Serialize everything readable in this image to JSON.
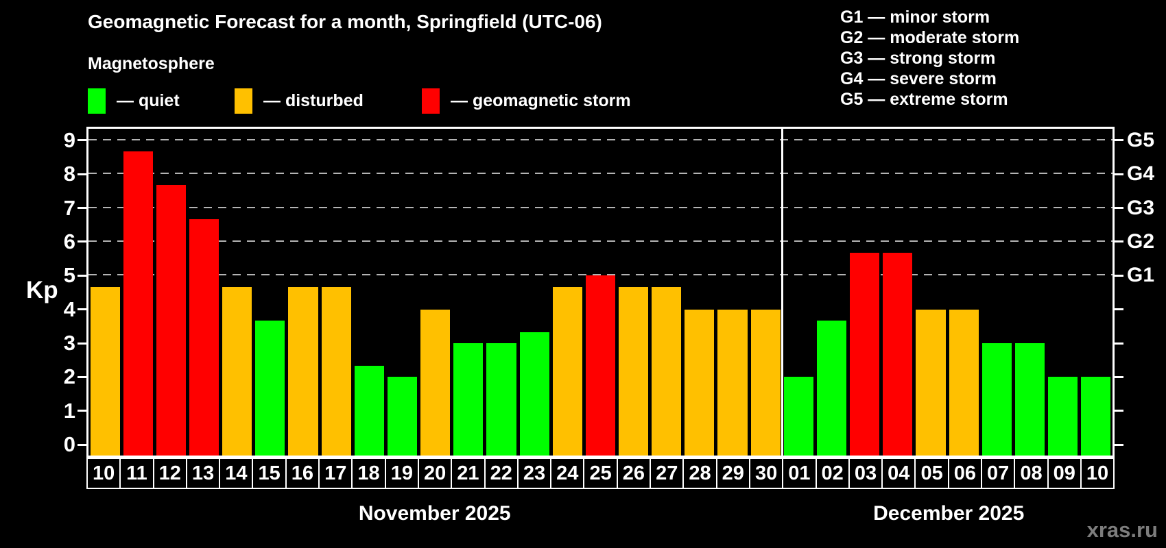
{
  "title": "Geomagnetic Forecast for a month, Springfield (UTC-06)",
  "subtitle": "Magnetosphere",
  "legend": {
    "items": [
      {
        "key": "quiet",
        "label": "— quiet",
        "color": "#00ff00"
      },
      {
        "key": "disturbed",
        "label": "— disturbed",
        "color": "#ffc000"
      },
      {
        "key": "storm",
        "label": "— geomagnetic storm",
        "color": "#ff0000"
      }
    ]
  },
  "g_scale_legend": [
    {
      "text": "G1 — minor storm"
    },
    {
      "text": "G2 — moderate storm"
    },
    {
      "text": "G3 — strong storm"
    },
    {
      "text": "G4 — severe storm"
    },
    {
      "text": "G5 — extreme storm"
    }
  ],
  "watermark": "xras.ru",
  "chart_data": {
    "type": "bar",
    "ylabel": "Kp",
    "ylim": [
      0,
      9
    ],
    "y_ticks": [
      0,
      1,
      2,
      3,
      4,
      5,
      6,
      7,
      8,
      9
    ],
    "gridlines_at_kp": [
      5,
      6,
      7,
      8,
      9
    ],
    "grid": "horizontal dashed lines at Kp 5-9 (G1-G5 levels)",
    "legend_position": "top-left swatches; G-scale meanings top-right",
    "right_axis_labels": [
      {
        "kp": 5,
        "label": "G1"
      },
      {
        "kp": 6,
        "label": "G2"
      },
      {
        "kp": 7,
        "label": "G3"
      },
      {
        "kp": 8,
        "label": "G4"
      },
      {
        "kp": 9,
        "label": "G5"
      }
    ],
    "months": [
      {
        "label": "November 2025",
        "day_count": 21
      },
      {
        "label": "December 2025",
        "day_count": 10
      }
    ],
    "colors": {
      "quiet": "#00ff00",
      "disturbed": "#ffc000",
      "storm": "#ff0000"
    },
    "days": [
      {
        "date": "10",
        "month": "November 2025",
        "kp": 4.67,
        "condition": "disturbed"
      },
      {
        "date": "11",
        "month": "November 2025",
        "kp": 8.67,
        "condition": "storm"
      },
      {
        "date": "12",
        "month": "November 2025",
        "kp": 7.67,
        "condition": "storm"
      },
      {
        "date": "13",
        "month": "November 2025",
        "kp": 6.67,
        "condition": "storm"
      },
      {
        "date": "14",
        "month": "November 2025",
        "kp": 4.67,
        "condition": "disturbed"
      },
      {
        "date": "15",
        "month": "November 2025",
        "kp": 3.67,
        "condition": "quiet"
      },
      {
        "date": "16",
        "month": "November 2025",
        "kp": 4.67,
        "condition": "disturbed"
      },
      {
        "date": "17",
        "month": "November 2025",
        "kp": 4.67,
        "condition": "disturbed"
      },
      {
        "date": "18",
        "month": "November 2025",
        "kp": 2.33,
        "condition": "quiet"
      },
      {
        "date": "19",
        "month": "November 2025",
        "kp": 2.0,
        "condition": "quiet"
      },
      {
        "date": "20",
        "month": "November 2025",
        "kp": 4.0,
        "condition": "disturbed"
      },
      {
        "date": "21",
        "month": "November 2025",
        "kp": 3.0,
        "condition": "quiet"
      },
      {
        "date": "22",
        "month": "November 2025",
        "kp": 3.0,
        "condition": "quiet"
      },
      {
        "date": "23",
        "month": "November 2025",
        "kp": 3.33,
        "condition": "quiet"
      },
      {
        "date": "24",
        "month": "November 2025",
        "kp": 4.67,
        "condition": "disturbed"
      },
      {
        "date": "25",
        "month": "November 2025",
        "kp": 5.0,
        "condition": "storm"
      },
      {
        "date": "26",
        "month": "November 2025",
        "kp": 4.67,
        "condition": "disturbed"
      },
      {
        "date": "27",
        "month": "November 2025",
        "kp": 4.67,
        "condition": "disturbed"
      },
      {
        "date": "28",
        "month": "November 2025",
        "kp": 4.0,
        "condition": "disturbed"
      },
      {
        "date": "29",
        "month": "November 2025",
        "kp": 4.0,
        "condition": "disturbed"
      },
      {
        "date": "30",
        "month": "November 2025",
        "kp": 4.0,
        "condition": "disturbed"
      },
      {
        "date": "01",
        "month": "December 2025",
        "kp": 2.0,
        "condition": "quiet"
      },
      {
        "date": "02",
        "month": "December 2025",
        "kp": 3.67,
        "condition": "quiet"
      },
      {
        "date": "03",
        "month": "December 2025",
        "kp": 5.67,
        "condition": "storm"
      },
      {
        "date": "04",
        "month": "December 2025",
        "kp": 5.67,
        "condition": "storm"
      },
      {
        "date": "05",
        "month": "December 2025",
        "kp": 4.0,
        "condition": "disturbed"
      },
      {
        "date": "06",
        "month": "December 2025",
        "kp": 4.0,
        "condition": "disturbed"
      },
      {
        "date": "07",
        "month": "December 2025",
        "kp": 3.0,
        "condition": "quiet"
      },
      {
        "date": "08",
        "month": "December 2025",
        "kp": 3.0,
        "condition": "quiet"
      },
      {
        "date": "09",
        "month": "December 2025",
        "kp": 2.0,
        "condition": "quiet"
      },
      {
        "date": "10",
        "month": "December 2025",
        "kp": 2.0,
        "condition": "quiet"
      }
    ]
  }
}
